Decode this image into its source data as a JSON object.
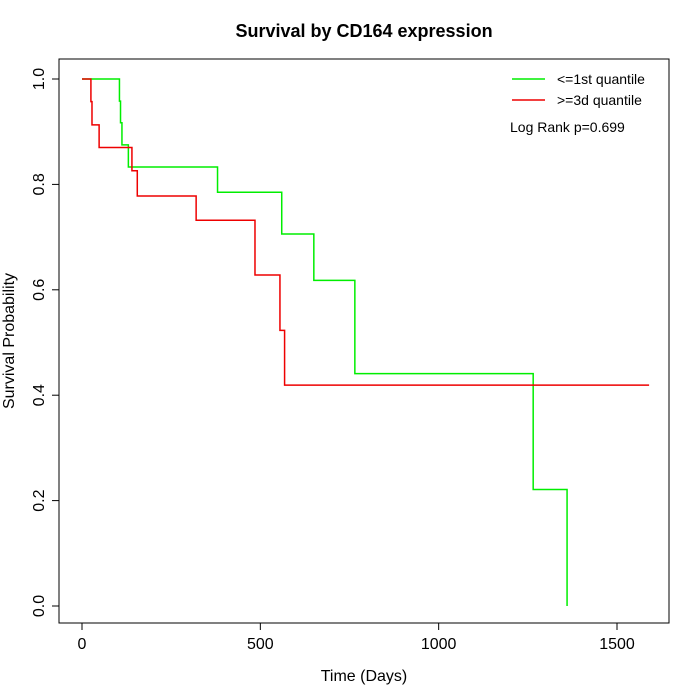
{
  "chart_data": {
    "type": "line",
    "subtype": "kaplan-meier-step",
    "title": "Survival by CD164 expression",
    "xlabel": "Time (Days)",
    "ylabel": "Survival Probability",
    "xlim": [
      0,
      1600
    ],
    "ylim": [
      0,
      1
    ],
    "xticks": [
      0,
      500,
      1000,
      1500
    ],
    "yticks": [
      0.0,
      0.2,
      0.4,
      0.6,
      0.8,
      1.0
    ],
    "xtick_labels": [
      "0",
      "500",
      "1000",
      "1500"
    ],
    "ytick_labels": [
      "0.0",
      "0.2",
      "0.4",
      "0.6",
      "0.8",
      "1.0"
    ],
    "grid": false,
    "legend_position": "top-right",
    "annotation": "Log Rank p=0.699",
    "series": [
      {
        "name": "<=1st quantile",
        "color": "#00ee00",
        "x": [
          0,
          105,
          108,
          112,
          130,
          140,
          380,
          560,
          650,
          765,
          1265,
          1360
        ],
        "y": [
          1.0,
          0.958,
          0.917,
          0.875,
          0.833,
          0.833,
          0.785,
          0.706,
          0.618,
          0.441,
          0.221,
          0.0
        ],
        "end_x": 1360
      },
      {
        "name": ">=3d quantile",
        "color": "#ee0000",
        "x": [
          0,
          25,
          28,
          48,
          140,
          155,
          320,
          485,
          555,
          568
        ],
        "y": [
          1.0,
          0.957,
          0.913,
          0.87,
          0.826,
          0.778,
          0.732,
          0.628,
          0.523,
          0.419
        ],
        "end_x": 1590
      }
    ]
  }
}
